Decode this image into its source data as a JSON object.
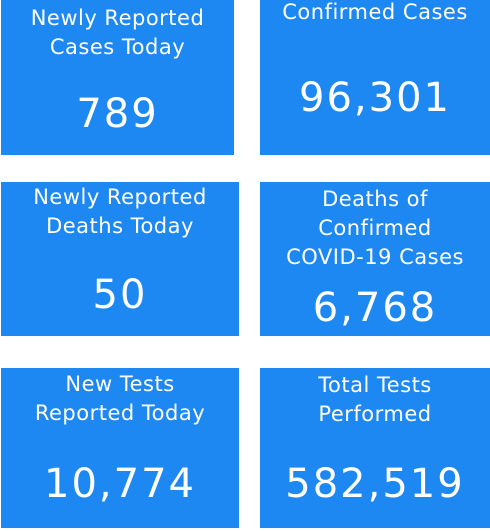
{
  "tiles": [
    {
      "label": "Newly Reported\nCases Today",
      "value": "789"
    },
    {
      "label": "Confirmed Cases",
      "value": "96,301"
    },
    {
      "label": "Newly Reported\nDeaths Today",
      "value": "50"
    },
    {
      "label": "Deaths of\nConfirmed\nCOVID-19 Cases",
      "value": "6,768"
    },
    {
      "label": "New Tests\nReported Today",
      "value": "10,774"
    },
    {
      "label": "Total Tests\nPerformed",
      "value": "582,519"
    }
  ],
  "colors": {
    "tile_background": "#1e88f2",
    "tile_text": "#ffffff",
    "page_background": "#ffffff"
  }
}
